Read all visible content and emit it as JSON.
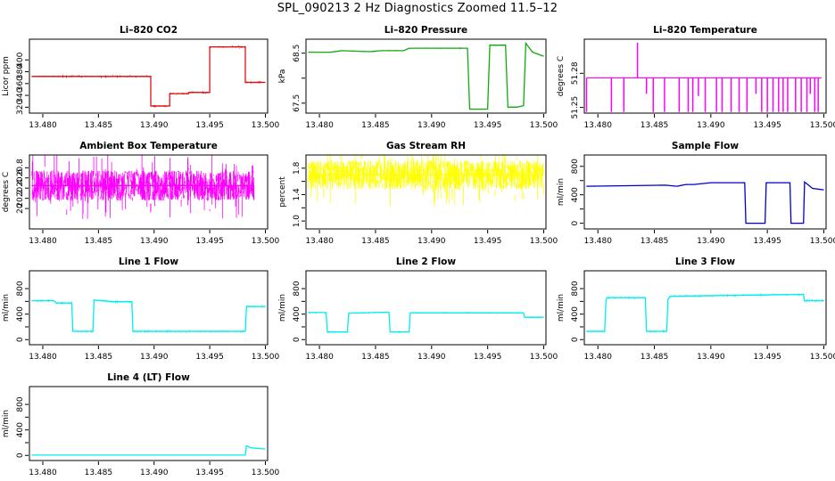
{
  "title": "SPL_090213  2 Hz Diagnostics Zoomed 11.5–12",
  "colors": {
    "red": "#dd1111",
    "green": "#11aa11",
    "magenta": "#ff00ff",
    "yellow": "#ffff00",
    "blue": "#0000cc",
    "cyan": "#00eeee"
  },
  "chart_data": [
    {
      "type": "line",
      "title": "Li–820 CO2",
      "ylabel": "Licor ppm",
      "xlim": [
        13.4788,
        13.5002
      ],
      "ylim": [
        310,
        435
      ],
      "x_ticks": [
        13.48,
        13.485,
        13.49,
        13.495,
        13.5
      ],
      "y_ticks": [
        320,
        340,
        360,
        380,
        400
      ],
      "color": "red",
      "noise": 1.2,
      "series": [
        {
          "x": [
            13.479,
            13.4897,
            13.4897,
            13.4914,
            13.4914,
            13.4931,
            13.4931,
            13.495,
            13.495,
            13.4982,
            13.4982,
            13.5
          ],
          "y": [
            372,
            372,
            322,
            322,
            343,
            343,
            345,
            345,
            422,
            422,
            362,
            362
          ]
        }
      ]
    },
    {
      "type": "line",
      "title": "Li–820 Pressure",
      "ylabel": "kPa",
      "xlim": [
        13.4788,
        13.5002
      ],
      "ylim": [
        67.3,
        68.78
      ],
      "x_ticks": [
        13.48,
        13.485,
        13.49,
        13.495,
        13.5
      ],
      "y_ticks": [
        67.5,
        68.0,
        68.5
      ],
      "y_tick_labels": [
        "67.5",
        "",
        "68.5"
      ],
      "color": "green",
      "noise": 0.008,
      "series": [
        {
          "x": [
            13.479,
            13.481,
            13.482,
            13.4845,
            13.4855,
            13.4875,
            13.488,
            13.492,
            13.4923,
            13.4932,
            13.4934,
            13.4942,
            13.495,
            13.4952,
            13.496,
            13.4966,
            13.4968,
            13.4976,
            13.4982,
            13.4984,
            13.499,
            13.5
          ],
          "y": [
            68.52,
            68.52,
            68.55,
            68.53,
            68.55,
            68.55,
            68.6,
            68.6,
            68.6,
            68.6,
            67.38,
            67.38,
            67.38,
            68.66,
            68.66,
            68.66,
            67.42,
            67.42,
            67.45,
            68.7,
            68.52,
            68.44
          ]
        }
      ]
    },
    {
      "type": "spikes",
      "title": "Li–820 Temperature",
      "ylabel": "degrees C",
      "xlim": [
        13.4788,
        13.5002
      ],
      "ylim": [
        51.245,
        51.31
      ],
      "x_ticks": [
        13.48,
        13.485,
        13.49,
        13.495,
        13.5
      ],
      "y_ticks": [
        51.25,
        51.28
      ],
      "y_tick_labels": [
        "51.25",
        "51.28"
      ],
      "color": "magenta",
      "baseline": 51.276,
      "series": [
        {
          "x": [
            13.479,
            13.4812,
            13.4823,
            13.4835,
            13.4843,
            13.4849,
            13.4859,
            13.4872,
            13.488,
            13.4884,
            13.4889,
            13.4895,
            13.4905,
            13.491,
            13.4918,
            13.4925,
            13.4932,
            13.494,
            13.4945,
            13.495,
            13.4955,
            13.496,
            13.4964,
            13.4968,
            13.4975,
            13.498,
            13.4985,
            13.4988,
            13.4992,
            13.4995
          ],
          "y": [
            51.246,
            51.246,
            51.246,
            51.307,
            51.262,
            51.246,
            51.246,
            51.246,
            51.246,
            51.246,
            51.26,
            51.246,
            51.246,
            51.246,
            51.246,
            51.246,
            51.246,
            51.262,
            51.246,
            51.246,
            51.246,
            51.246,
            51.246,
            51.246,
            51.246,
            51.246,
            51.246,
            51.262,
            51.246,
            51.246
          ]
        }
      ]
    },
    {
      "type": "line",
      "title": "Ambient Box Temperature",
      "ylabel": "degrees C",
      "xlim": [
        13.4788,
        13.5002
      ],
      "ylim": [
        19.6,
        21.05
      ],
      "x_ticks": [
        13.48,
        13.485,
        13.49,
        13.495,
        13.5
      ],
      "y_ticks": [
        20.0,
        20.2,
        20.4,
        20.6,
        20.8
      ],
      "color": "magenta",
      "noise": 0.3,
      "series": [
        {
          "x": [
            13.479,
            13.499
          ],
          "y": [
            20.45,
            20.45
          ]
        }
      ]
    },
    {
      "type": "line",
      "title": "Gas Stream RH",
      "ylabel": "percent",
      "xlim": [
        13.4788,
        13.5002
      ],
      "ylim": [
        0.88,
        2.0
      ],
      "x_ticks": [
        13.48,
        13.485,
        13.49,
        13.495,
        13.5
      ],
      "y_ticks": [
        1.0,
        1.2,
        1.4,
        1.6,
        1.8
      ],
      "y_tick_labels": [
        "1.0",
        "",
        "1.4",
        "",
        "1.8"
      ],
      "color": "yellow",
      "noise": 0.22,
      "series": [
        {
          "x": [
            13.479,
            13.5
          ],
          "y": [
            1.7,
            1.7
          ]
        }
      ]
    },
    {
      "type": "line",
      "title": "Sample Flow",
      "ylabel": "ml/min",
      "xlim": [
        13.4788,
        13.5002
      ],
      "ylim": [
        -80,
        960
      ],
      "x_ticks": [
        13.48,
        13.485,
        13.49,
        13.495,
        13.5
      ],
      "y_ticks": [
        0,
        200,
        400,
        600,
        800
      ],
      "y_tick_labels": [
        "0",
        "",
        "400",
        "",
        "800"
      ],
      "color": "blue",
      "noise": 4,
      "series": [
        {
          "x": [
            13.479,
            13.486,
            13.487,
            13.4878,
            13.4885,
            13.49,
            13.493,
            13.4931,
            13.4948,
            13.4949,
            13.4954,
            13.4955,
            13.497,
            13.4971,
            13.4982,
            13.4983,
            13.499,
            13.5
          ],
          "y": [
            520,
            535,
            520,
            545,
            545,
            570,
            570,
            0,
            0,
            570,
            570,
            570,
            570,
            0,
            0,
            580,
            490,
            470
          ]
        }
      ]
    },
    {
      "type": "line",
      "title": "Line 1 Flow",
      "ylabel": "ml/min",
      "xlim": [
        13.4788,
        13.5002
      ],
      "ylim": [
        -80,
        1080
      ],
      "x_ticks": [
        13.48,
        13.485,
        13.49,
        13.495,
        13.5
      ],
      "y_ticks": [
        0,
        200,
        400,
        600,
        800
      ],
      "y_tick_labels": [
        "0",
        "",
        "400",
        "",
        "800"
      ],
      "color": "cyan",
      "noise": 12,
      "series": [
        {
          "x": [
            13.479,
            13.481,
            13.4812,
            13.4826,
            13.4827,
            13.4845,
            13.4846,
            13.4863,
            13.4864,
            13.488,
            13.4881,
            13.4982,
            13.4983,
            13.5
          ],
          "y": [
            610,
            610,
            575,
            575,
            130,
            130,
            620,
            595,
            595,
            595,
            130,
            130,
            520,
            520
          ]
        }
      ]
    },
    {
      "type": "line",
      "title": "Line 2 Flow",
      "ylabel": "ml/min",
      "xlim": [
        13.4788,
        13.5002
      ],
      "ylim": [
        -80,
        1080
      ],
      "x_ticks": [
        13.48,
        13.485,
        13.49,
        13.495,
        13.5
      ],
      "y_ticks": [
        0,
        200,
        400,
        600,
        800
      ],
      "y_tick_labels": [
        "0",
        "",
        "400",
        "",
        "800"
      ],
      "color": "cyan",
      "noise": 8,
      "series": [
        {
          "x": [
            13.479,
            13.4806,
            13.4807,
            13.4825,
            13.4826,
            13.4862,
            13.4863,
            13.488,
            13.4881,
            13.4982,
            13.4983,
            13.5
          ],
          "y": [
            425,
            425,
            120,
            120,
            415,
            430,
            120,
            120,
            420,
            420,
            350,
            350
          ]
        }
      ]
    },
    {
      "type": "line",
      "title": "Line 3 Flow",
      "ylabel": "ml/min",
      "xlim": [
        13.4788,
        13.5002
      ],
      "ylim": [
        -80,
        1080
      ],
      "x_ticks": [
        13.48,
        13.485,
        13.49,
        13.495,
        13.5
      ],
      "y_ticks": [
        0,
        200,
        400,
        600,
        800
      ],
      "y_tick_labels": [
        "0",
        "",
        "400",
        "",
        "800"
      ],
      "color": "cyan",
      "noise": 12,
      "series": [
        {
          "x": [
            13.479,
            13.4806,
            13.4807,
            13.4808,
            13.4842,
            13.4843,
            13.4861,
            13.4862,
            13.4864,
            13.4982,
            13.4983,
            13.5
          ],
          "y": [
            130,
            130,
            580,
            660,
            660,
            130,
            130,
            630,
            680,
            710,
            610,
            610
          ]
        }
      ]
    },
    {
      "type": "line",
      "title": "Line 4 (LT) Flow",
      "ylabel": "ml/min",
      "xlim": [
        13.4788,
        13.5002
      ],
      "ylim": [
        -80,
        1080
      ],
      "x_ticks": [
        13.48,
        13.485,
        13.49,
        13.495,
        13.5
      ],
      "y_ticks": [
        0,
        200,
        400,
        600,
        800
      ],
      "y_tick_labels": [
        "0",
        "",
        "400",
        "",
        "800"
      ],
      "color": "cyan",
      "noise": 2,
      "series": [
        {
          "x": [
            13.479,
            13.4982,
            13.4983,
            13.4987,
            13.5
          ],
          "y": [
            5,
            5,
            150,
            120,
            100
          ]
        }
      ]
    }
  ]
}
